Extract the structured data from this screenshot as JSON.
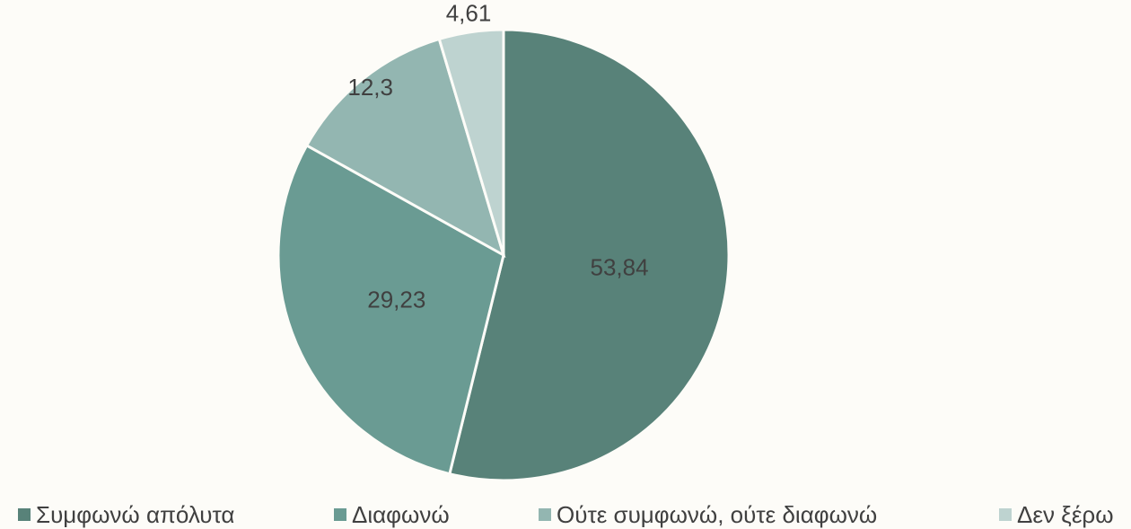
{
  "chart_data": {
    "type": "pie",
    "categories": [
      "Συμφωνώ απόλυτα",
      "Διαφωνώ",
      "Ούτε συμφωνώ, ούτε διαφωνώ",
      "Δεν ξέρω"
    ],
    "values": [
      53.84,
      29.23,
      12.3,
      4.61
    ],
    "value_labels": [
      "53,84",
      "29,23",
      "12,3",
      "4,61"
    ],
    "colors": [
      "#588279",
      "#6a9b93",
      "#93b6b1",
      "#bed3d0"
    ],
    "legend": "bottom"
  }
}
